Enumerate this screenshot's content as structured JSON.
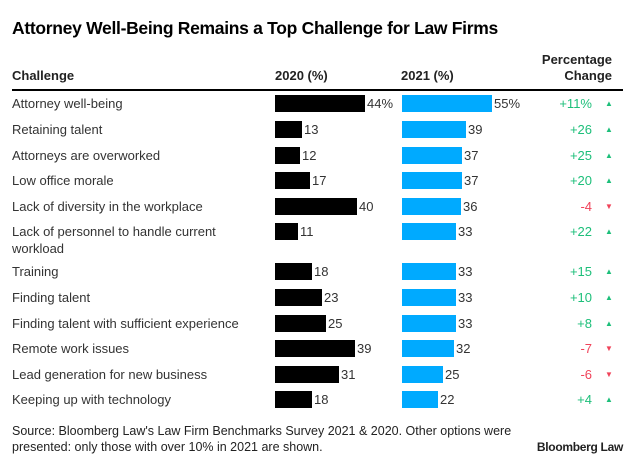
{
  "chart_data": {
    "type": "bar",
    "title": "Attorney Well-Being Remains a Top Challenge for Law Firms",
    "columns": {
      "challenge": "Challenge",
      "y2020": "2020 (%)",
      "y2021": "2021 (%)",
      "change_line1": "Percentage",
      "change_line2": "Change"
    },
    "categories": [
      "Attorney well-being",
      "Retaining talent",
      "Attorneys are overworked",
      "Low office morale",
      "Lack of diversity in the workplace",
      "Lack of personnel to handle current workload",
      "Training",
      "Finding talent",
      "Finding talent with sufficient experience",
      "Remote work issues",
      "Lead generation for new business",
      "Keeping up with technology"
    ],
    "series": [
      {
        "name": "2020 (%)",
        "color": "#000000",
        "values": [
          44,
          13,
          12,
          17,
          40,
          11,
          18,
          23,
          25,
          39,
          31,
          18
        ],
        "labels": [
          "44%",
          "13",
          "12",
          "17",
          "40",
          "11",
          "18",
          "23",
          "25",
          "39",
          "31",
          "18"
        ]
      },
      {
        "name": "2021 (%)",
        "color": "#00aaff",
        "values": [
          55,
          39,
          37,
          37,
          36,
          33,
          33,
          33,
          33,
          32,
          25,
          22
        ],
        "labels": [
          "55%",
          "39",
          "37",
          "37",
          "36",
          "33",
          "33",
          "33",
          "33",
          "32",
          "25",
          "22"
        ]
      }
    ],
    "change": {
      "values": [
        11,
        26,
        25,
        20,
        -4,
        22,
        15,
        10,
        8,
        -7,
        -6,
        4
      ],
      "labels": [
        "+11%",
        "+26",
        "+25",
        "+20",
        "-4",
        "+22",
        "+15",
        "+10",
        "+8",
        "-7",
        "-6",
        "+4"
      ],
      "up_color": "#1dbf7a",
      "down_color": "#f0435a",
      "up_arrow": "▲",
      "down_arrow": "▼"
    },
    "source": "Source: Bloomberg Law's Law Firm Benchmarks Survey 2021 & 2020. Other options were presented: only those with over 10% in 2021 are shown.",
    "brand": "Bloomberg Law"
  }
}
